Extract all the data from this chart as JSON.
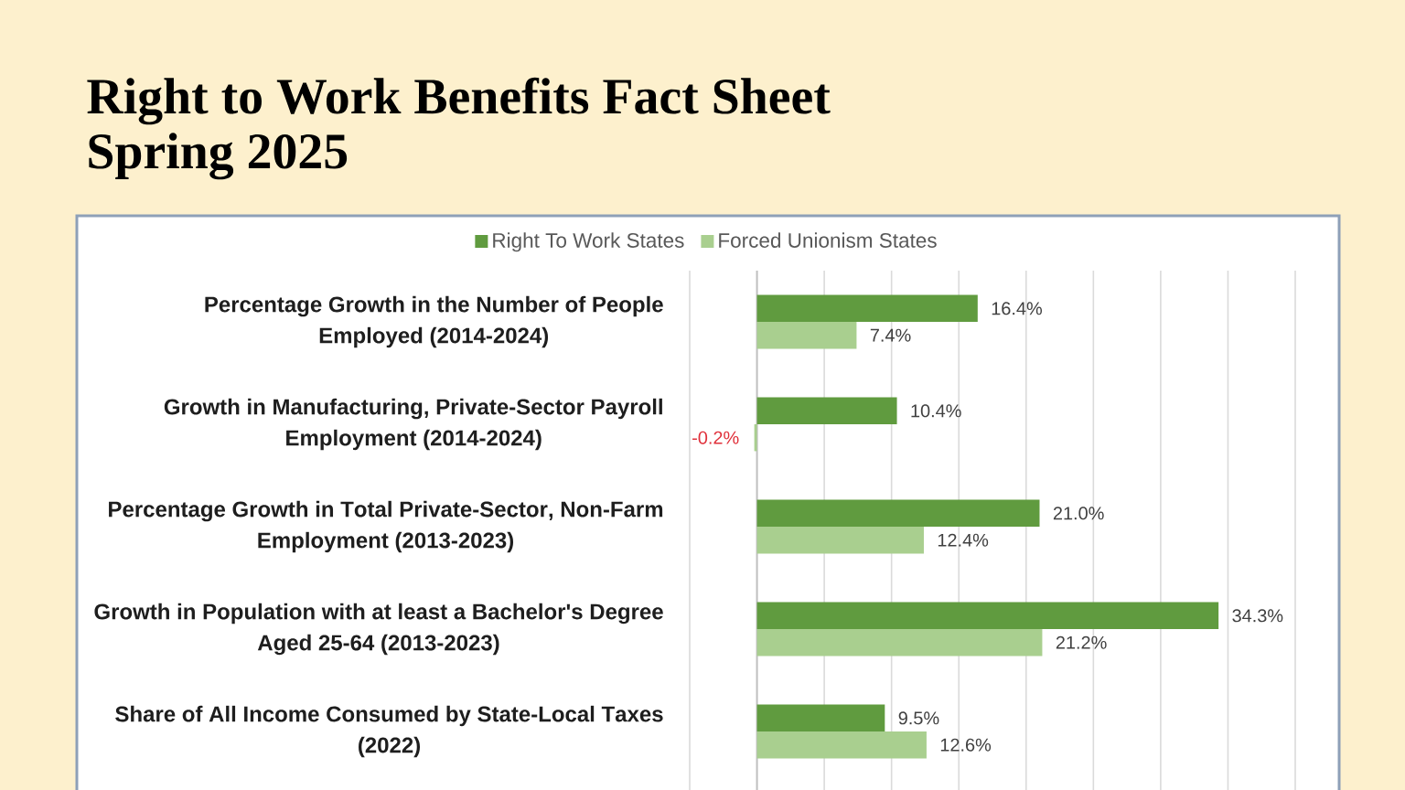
{
  "chart_data": {
    "type": "bar",
    "orientation": "horizontal",
    "title": "Right to Work Benefits Fact Sheet",
    "subtitle": "Spring 2025",
    "categories": [
      "Percentage Growth in the Number of People Employed (2014-2024)",
      "Growth in Manufacturing, Private-Sector Payroll Employment (2014-2024)",
      "Percentage Growth in Total Private-Sector, Non-Farm Employment (2013-2023)",
      "Growth in Population with at least a Bachelor's Degree Aged 25-64 (2013-2023)",
      "Share of All Income Consumed by State-Local Taxes (2022)"
    ],
    "series": [
      {
        "name": "Right To Work States",
        "color": "#609b3f",
        "values": [
          16.4,
          10.4,
          21.0,
          34.3,
          9.5
        ],
        "value_labels": [
          "16.4%",
          "10.4%",
          "21.0%",
          "34.3%",
          "9.5%"
        ]
      },
      {
        "name": "Forced Unionism States",
        "color": "#a9cf8f",
        "values": [
          7.4,
          -0.2,
          12.4,
          21.2,
          12.6
        ],
        "value_labels": [
          "7.4%",
          "-0.2%",
          "12.4%",
          "21.2%",
          "12.6%"
        ]
      }
    ],
    "xlim": [
      -5,
      40
    ],
    "xticks": [
      {
        "value": -5,
        "label": null
      },
      {
        "value": 0,
        "label": null
      },
      {
        "value": 5,
        "label": null
      },
      {
        "value": 10,
        "label": null
      },
      {
        "value": 15,
        "label": null
      },
      {
        "value": 20,
        "label": null
      },
      {
        "value": 25,
        "label": null
      },
      {
        "value": 30,
        "label": null
      },
      {
        "value": 35,
        "label": null
      },
      {
        "value": 40,
        "label": null
      }
    ],
    "grid": "x",
    "legend": "top",
    "tick_labels": "y"
  }
}
